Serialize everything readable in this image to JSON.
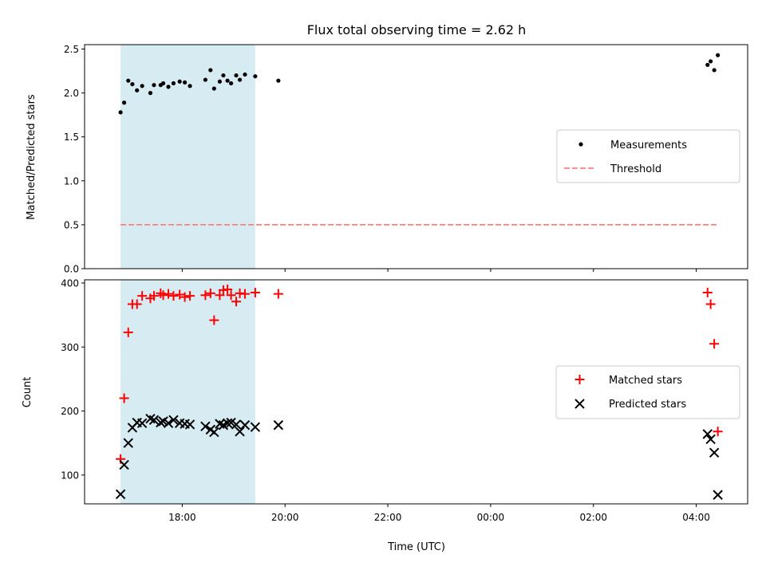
{
  "title": "Flux total observing time = 2.62 h",
  "colors": {
    "measurement": "#000000",
    "threshold": "#ff7f7f",
    "matched": "#ff0000",
    "predicted": "#000000",
    "span": "#add8e6"
  },
  "chart_data": [
    {
      "type": "scatter",
      "panel": "top",
      "ylabel": "Matched/Predicted stars",
      "ylim": [
        0,
        2.55
      ],
      "yticks": [
        0.0,
        0.5,
        1.0,
        1.5,
        2.0,
        2.5
      ],
      "ytick_labels": [
        "0.0",
        "0.5",
        "1.0",
        "1.5",
        "2.0",
        "2.5"
      ],
      "x_unit": "hours since 00:00 UTC (16.8 = 16:48)",
      "xlim": [
        16.1,
        29.0
      ],
      "shaded_span": [
        16.8,
        19.42
      ],
      "legend": {
        "position": "center-right",
        "entries": [
          "Measurements",
          "Threshold"
        ]
      },
      "series": [
        {
          "name": "Measurements",
          "points": [
            [
              16.8,
              1.78
            ],
            [
              16.87,
              1.89
            ],
            [
              16.95,
              2.14
            ],
            [
              17.03,
              2.1
            ],
            [
              17.12,
              2.03
            ],
            [
              17.22,
              2.08
            ],
            [
              17.38,
              2.0
            ],
            [
              17.45,
              2.09
            ],
            [
              17.58,
              2.09
            ],
            [
              17.63,
              2.11
            ],
            [
              17.73,
              2.07
            ],
            [
              17.83,
              2.11
            ],
            [
              17.95,
              2.13
            ],
            [
              18.05,
              2.12
            ],
            [
              18.15,
              2.08
            ],
            [
              18.45,
              2.15
            ],
            [
              18.55,
              2.26
            ],
            [
              18.62,
              2.05
            ],
            [
              18.73,
              2.13
            ],
            [
              18.8,
              2.2
            ],
            [
              18.88,
              2.14
            ],
            [
              18.95,
              2.11
            ],
            [
              19.05,
              2.2
            ],
            [
              19.12,
              2.15
            ],
            [
              19.22,
              2.21
            ],
            [
              19.42,
              2.19
            ],
            [
              19.87,
              2.14
            ],
            [
              28.22,
              2.32
            ],
            [
              28.28,
              2.36
            ],
            [
              28.35,
              2.26
            ],
            [
              28.42,
              2.43
            ]
          ]
        },
        {
          "name": "Threshold",
          "style": "dashed",
          "points": [
            [
              16.8,
              0.5
            ],
            [
              28.42,
              0.5
            ]
          ]
        }
      ]
    },
    {
      "type": "scatter",
      "panel": "bottom",
      "ylabel": "Count",
      "xlabel": "Time (UTC)",
      "ylim": [
        55,
        405
      ],
      "yticks": [
        100,
        200,
        300,
        400
      ],
      "xticks": [
        16,
        18,
        20,
        22,
        24,
        26,
        28
      ],
      "xtick_labels": [
        "",
        "18:00",
        "20:00",
        "22:00",
        "00:00",
        "02:00",
        "04:00"
      ],
      "xlim": [
        16.1,
        29.0
      ],
      "shaded_span": [
        16.8,
        19.42
      ],
      "legend": {
        "position": "center-right",
        "entries": [
          "Matched stars",
          "Predicted stars"
        ]
      },
      "series": [
        {
          "name": "Matched stars",
          "points": [
            [
              16.8,
              125
            ],
            [
              16.87,
              220
            ],
            [
              16.95,
              323
            ],
            [
              17.03,
              367
            ],
            [
              17.12,
              367
            ],
            [
              17.22,
              380
            ],
            [
              17.38,
              376
            ],
            [
              17.45,
              380
            ],
            [
              17.58,
              384
            ],
            [
              17.63,
              381
            ],
            [
              17.73,
              383
            ],
            [
              17.83,
              380
            ],
            [
              17.95,
              382
            ],
            [
              18.05,
              378
            ],
            [
              18.15,
              380
            ],
            [
              18.45,
              381
            ],
            [
              18.55,
              384
            ],
            [
              18.62,
              342
            ],
            [
              18.73,
              381
            ],
            [
              18.8,
              389
            ],
            [
              18.88,
              390
            ],
            [
              18.95,
              381
            ],
            [
              19.05,
              371
            ],
            [
              19.12,
              384
            ],
            [
              19.22,
              383
            ],
            [
              19.42,
              385
            ],
            [
              19.87,
              383
            ],
            [
              28.22,
              385
            ],
            [
              28.28,
              367
            ],
            [
              28.35,
              305
            ],
            [
              28.42,
              168
            ]
          ]
        },
        {
          "name": "Predicted stars",
          "points": [
            [
              16.8,
              70
            ],
            [
              16.87,
              116
            ],
            [
              16.95,
              150
            ],
            [
              17.03,
              174
            ],
            [
              17.12,
              182
            ],
            [
              17.22,
              181
            ],
            [
              17.38,
              188
            ],
            [
              17.45,
              186
            ],
            [
              17.58,
              182
            ],
            [
              17.63,
              184
            ],
            [
              17.73,
              181
            ],
            [
              17.83,
              186
            ],
            [
              17.95,
              181
            ],
            [
              18.05,
              180
            ],
            [
              18.15,
              179
            ],
            [
              18.45,
              176
            ],
            [
              18.55,
              171
            ],
            [
              18.62,
              167
            ],
            [
              18.73,
              180
            ],
            [
              18.8,
              178
            ],
            [
              18.88,
              181
            ],
            [
              18.95,
              182
            ],
            [
              19.05,
              179
            ],
            [
              19.12,
              168
            ],
            [
              19.22,
              178
            ],
            [
              19.42,
              175
            ],
            [
              19.87,
              178
            ],
            [
              28.22,
              164
            ],
            [
              28.28,
              156
            ],
            [
              28.35,
              135
            ],
            [
              28.42,
              69
            ]
          ]
        }
      ]
    }
  ]
}
